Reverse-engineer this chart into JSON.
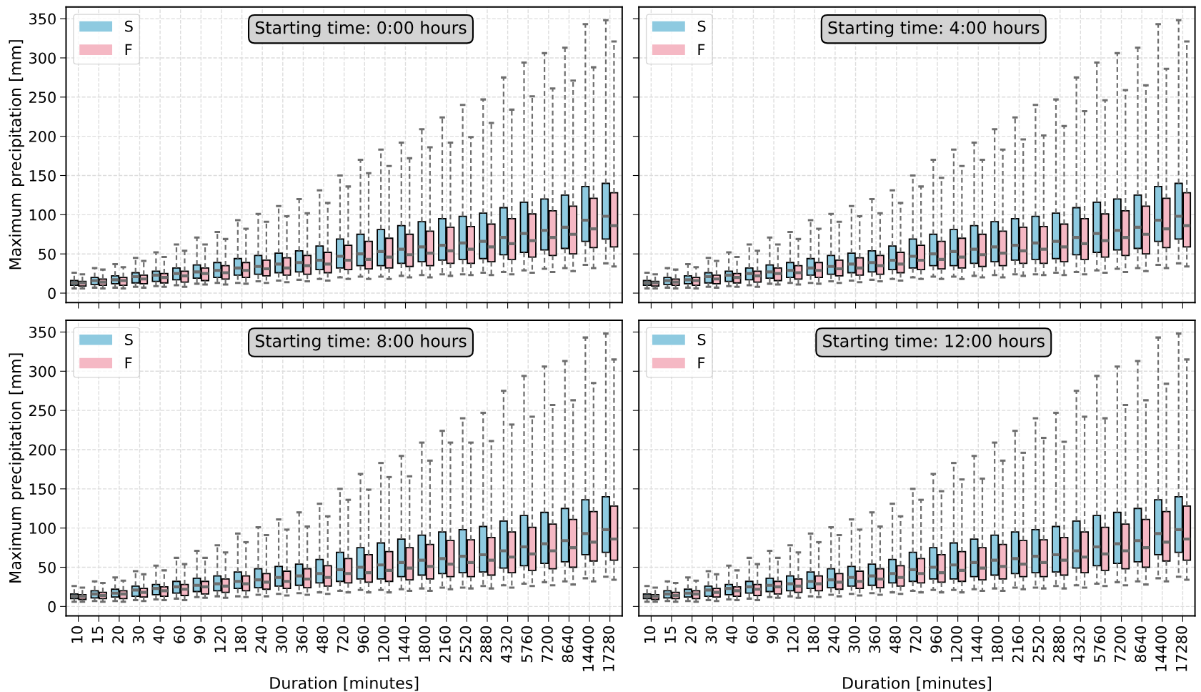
{
  "chart_data": [
    {
      "type": "box",
      "title": "Starting time: 0:00 hours",
      "ylabel": "Maximum precipitation [mm]",
      "tick_labels": "y",
      "legend": "top left",
      "grid": true,
      "categories": [
        "10",
        "15",
        "20",
        "30",
        "40",
        "60",
        "90",
        "120",
        "180",
        "240",
        "300",
        "360",
        "480",
        "720",
        "960",
        "1200",
        "1440",
        "1800",
        "2160",
        "2520",
        "2880",
        "4320",
        "5760",
        "7200",
        "8640",
        "14400",
        "17280"
      ],
      "ylim": [
        -12,
        365
      ],
      "yticks": [
        0,
        50,
        100,
        150,
        200,
        250,
        300,
        350
      ],
      "series": [
        {
          "name": "S",
          "color": "#8ecae0",
          "boxes": [
            {
              "low": 6,
              "q1": 10,
              "median": 13,
              "q3": 16,
              "high": 26
            },
            {
              "low": 7,
              "q1": 11,
              "median": 16,
              "q3": 20,
              "high": 32
            },
            {
              "low": 7,
              "q1": 12,
              "median": 17,
              "q3": 22,
              "high": 37
            },
            {
              "low": 8,
              "q1": 13,
              "median": 21,
              "q3": 26,
              "high": 45
            },
            {
              "low": 9,
              "q1": 15,
              "median": 23,
              "q3": 28,
              "high": 52
            },
            {
              "low": 10,
              "q1": 17,
              "median": 25,
              "q3": 32,
              "high": 62
            },
            {
              "low": 12,
              "q1": 19,
              "median": 27,
              "q3": 36,
              "high": 71
            },
            {
              "low": 13,
              "q1": 20,
              "median": 29,
              "q3": 39,
              "high": 78
            },
            {
              "low": 13,
              "q1": 23,
              "median": 32,
              "q3": 44,
              "high": 93
            },
            {
              "low": 15,
              "q1": 24,
              "median": 34,
              "q3": 48,
              "high": 101
            },
            {
              "low": 16,
              "q1": 26,
              "median": 37,
              "q3": 51,
              "high": 111
            },
            {
              "low": 17,
              "q1": 27,
              "median": 39,
              "q3": 54,
              "high": 120
            },
            {
              "low": 18,
              "q1": 30,
              "median": 42,
              "q3": 60,
              "high": 131
            },
            {
              "low": 20,
              "q1": 32,
              "median": 47,
              "q3": 69,
              "high": 150
            },
            {
              "low": 21,
              "q1": 35,
              "median": 50,
              "q3": 75,
              "high": 170
            },
            {
              "low": 21,
              "q1": 35,
              "median": 53,
              "q3": 81,
              "high": 183
            },
            {
              "low": 22,
              "q1": 38,
              "median": 56,
              "q3": 86,
              "high": 192
            },
            {
              "low": 23,
              "q1": 40,
              "median": 59,
              "q3": 91,
              "high": 209
            },
            {
              "low": 24,
              "q1": 42,
              "median": 61,
              "q3": 95,
              "high": 224
            },
            {
              "low": 24,
              "q1": 43,
              "median": 64,
              "q3": 98,
              "high": 240
            },
            {
              "low": 26,
              "q1": 44,
              "median": 66,
              "q3": 102,
              "high": 247
            },
            {
              "low": 27,
              "q1": 49,
              "median": 71,
              "q3": 109,
              "high": 275
            },
            {
              "low": 29,
              "q1": 52,
              "median": 76,
              "q3": 116,
              "high": 294
            },
            {
              "low": 31,
              "q1": 55,
              "median": 80,
              "q3": 120,
              "high": 306
            },
            {
              "low": 32,
              "q1": 57,
              "median": 84,
              "q3": 125,
              "high": 313
            },
            {
              "low": 36,
              "q1": 66,
              "median": 93,
              "q3": 136,
              "high": 343
            },
            {
              "low": 38,
              "q1": 69,
              "median": 98,
              "q3": 140,
              "high": 348
            }
          ]
        },
        {
          "name": "F",
          "color": "#f5b8c4",
          "boxes": [
            {
              "low": 6,
              "q1": 9,
              "median": 13,
              "q3": 15,
              "high": 24
            },
            {
              "low": 6,
              "q1": 10,
              "median": 14,
              "q3": 18,
              "high": 30
            },
            {
              "low": 6,
              "q1": 10,
              "median": 16,
              "q3": 20,
              "high": 33
            },
            {
              "low": 7,
              "q1": 12,
              "median": 18,
              "q3": 23,
              "high": 41
            },
            {
              "low": 8,
              "q1": 13,
              "median": 20,
              "q3": 25,
              "high": 46
            },
            {
              "low": 8,
              "q1": 14,
              "median": 22,
              "q3": 28,
              "high": 54
            },
            {
              "low": 11,
              "q1": 16,
              "median": 25,
              "q3": 32,
              "high": 62
            },
            {
              "low": 11,
              "q1": 18,
              "median": 26,
              "q3": 35,
              "high": 69
            },
            {
              "low": 12,
              "q1": 20,
              "median": 29,
              "q3": 39,
              "high": 82
            },
            {
              "low": 13,
              "q1": 22,
              "median": 31,
              "q3": 42,
              "high": 91
            },
            {
              "low": 14,
              "q1": 23,
              "median": 32,
              "q3": 45,
              "high": 98
            },
            {
              "low": 15,
              "q1": 24,
              "median": 35,
              "q3": 48,
              "high": 102
            },
            {
              "low": 16,
              "q1": 26,
              "median": 37,
              "q3": 52,
              "high": 115
            },
            {
              "low": 18,
              "q1": 30,
              "median": 42,
              "q3": 61,
              "high": 136
            },
            {
              "low": 18,
              "q1": 31,
              "median": 43,
              "q3": 66,
              "high": 153
            },
            {
              "low": 18,
              "q1": 32,
              "median": 46,
              "q3": 70,
              "high": 162
            },
            {
              "low": 20,
              "q1": 34,
              "median": 49,
              "q3": 75,
              "high": 172
            },
            {
              "low": 20,
              "q1": 35,
              "median": 51,
              "q3": 79,
              "high": 186
            },
            {
              "low": 22,
              "q1": 38,
              "median": 54,
              "q3": 84,
              "high": 192
            },
            {
              "low": 23,
              "q1": 38,
              "median": 56,
              "q3": 85,
              "high": 199
            },
            {
              "low": 23,
              "q1": 40,
              "median": 59,
              "q3": 88,
              "high": 217
            },
            {
              "low": 24,
              "q1": 43,
              "median": 63,
              "q3": 95,
              "high": 234
            },
            {
              "low": 26,
              "q1": 46,
              "median": 67,
              "q3": 101,
              "high": 251
            },
            {
              "low": 27,
              "q1": 48,
              "median": 71,
              "q3": 105,
              "high": 261
            },
            {
              "low": 28,
              "q1": 50,
              "median": 75,
              "q3": 111,
              "high": 271
            },
            {
              "low": 32,
              "q1": 58,
              "median": 82,
              "q3": 121,
              "high": 288
            },
            {
              "low": 34,
              "q1": 59,
              "median": 86,
              "q3": 128,
              "high": 321
            }
          ]
        }
      ]
    },
    {
      "type": "box",
      "title": "Starting time: 4:00 hours",
      "tick_labels": false,
      "legend": "top left",
      "grid": true,
      "categories": [
        "10",
        "15",
        "20",
        "30",
        "40",
        "60",
        "90",
        "120",
        "180",
        "240",
        "300",
        "360",
        "480",
        "720",
        "960",
        "1200",
        "1440",
        "1800",
        "2160",
        "2520",
        "2880",
        "4320",
        "5760",
        "7200",
        "8640",
        "14400",
        "17280"
      ],
      "ylim": [
        -12,
        365
      ],
      "yticks": [
        0,
        50,
        100,
        150,
        200,
        250,
        300,
        350
      ],
      "series": [
        {
          "name": "S",
          "color": "#8ecae0",
          "boxes": [
            {
              "low": 6,
              "q1": 10,
              "median": 13,
              "q3": 16,
              "high": 26
            },
            {
              "low": 7,
              "q1": 11,
              "median": 16,
              "q3": 20,
              "high": 32
            },
            {
              "low": 7,
              "q1": 12,
              "median": 17,
              "q3": 22,
              "high": 37
            },
            {
              "low": 8,
              "q1": 13,
              "median": 21,
              "q3": 26,
              "high": 45
            },
            {
              "low": 9,
              "q1": 15,
              "median": 23,
              "q3": 28,
              "high": 52
            },
            {
              "low": 10,
              "q1": 17,
              "median": 25,
              "q3": 32,
              "high": 62
            },
            {
              "low": 12,
              "q1": 19,
              "median": 27,
              "q3": 36,
              "high": 71
            },
            {
              "low": 13,
              "q1": 20,
              "median": 29,
              "q3": 39,
              "high": 78
            },
            {
              "low": 13,
              "q1": 23,
              "median": 32,
              "q3": 44,
              "high": 93
            },
            {
              "low": 15,
              "q1": 24,
              "median": 34,
              "q3": 48,
              "high": 101
            },
            {
              "low": 16,
              "q1": 26,
              "median": 37,
              "q3": 51,
              "high": 111
            },
            {
              "low": 17,
              "q1": 27,
              "median": 39,
              "q3": 54,
              "high": 120
            },
            {
              "low": 18,
              "q1": 30,
              "median": 42,
              "q3": 60,
              "high": 131
            },
            {
              "low": 20,
              "q1": 32,
              "median": 47,
              "q3": 69,
              "high": 150
            },
            {
              "low": 21,
              "q1": 35,
              "median": 50,
              "q3": 75,
              "high": 170
            },
            {
              "low": 21,
              "q1": 35,
              "median": 53,
              "q3": 81,
              "high": 183
            },
            {
              "low": 22,
              "q1": 38,
              "median": 56,
              "q3": 86,
              "high": 192
            },
            {
              "low": 23,
              "q1": 40,
              "median": 59,
              "q3": 91,
              "high": 209
            },
            {
              "low": 24,
              "q1": 42,
              "median": 61,
              "q3": 95,
              "high": 224
            },
            {
              "low": 24,
              "q1": 43,
              "median": 64,
              "q3": 98,
              "high": 240
            },
            {
              "low": 26,
              "q1": 44,
              "median": 66,
              "q3": 102,
              "high": 247
            },
            {
              "low": 27,
              "q1": 49,
              "median": 71,
              "q3": 109,
              "high": 275
            },
            {
              "low": 29,
              "q1": 52,
              "median": 76,
              "q3": 116,
              "high": 294
            },
            {
              "low": 31,
              "q1": 55,
              "median": 80,
              "q3": 120,
              "high": 306
            },
            {
              "low": 32,
              "q1": 57,
              "median": 84,
              "q3": 125,
              "high": 313
            },
            {
              "low": 36,
              "q1": 66,
              "median": 93,
              "q3": 136,
              "high": 343
            },
            {
              "low": 38,
              "q1": 69,
              "median": 98,
              "q3": 140,
              "high": 348
            }
          ]
        },
        {
          "name": "F",
          "color": "#f5b8c4",
          "boxes": [
            {
              "low": 6,
              "q1": 9,
              "median": 13,
              "q3": 15,
              "high": 24
            },
            {
              "low": 6,
              "q1": 10,
              "median": 14,
              "q3": 18,
              "high": 30
            },
            {
              "low": 6,
              "q1": 10,
              "median": 16,
              "q3": 20,
              "high": 33
            },
            {
              "low": 7,
              "q1": 12,
              "median": 18,
              "q3": 23,
              "high": 41
            },
            {
              "low": 8,
              "q1": 13,
              "median": 20,
              "q3": 25,
              "high": 46
            },
            {
              "low": 8,
              "q1": 14,
              "median": 22,
              "q3": 28,
              "high": 54
            },
            {
              "low": 11,
              "q1": 16,
              "median": 25,
              "q3": 32,
              "high": 62
            },
            {
              "low": 11,
              "q1": 18,
              "median": 26,
              "q3": 35,
              "high": 69
            },
            {
              "low": 12,
              "q1": 20,
              "median": 29,
              "q3": 39,
              "high": 82
            },
            {
              "low": 13,
              "q1": 22,
              "median": 31,
              "q3": 42,
              "high": 91
            },
            {
              "low": 14,
              "q1": 23,
              "median": 32,
              "q3": 45,
              "high": 98
            },
            {
              "low": 15,
              "q1": 24,
              "median": 35,
              "q3": 48,
              "high": 102
            },
            {
              "low": 16,
              "q1": 26,
              "median": 37,
              "q3": 52,
              "high": 115
            },
            {
              "low": 18,
              "q1": 30,
              "median": 42,
              "q3": 61,
              "high": 136
            },
            {
              "low": 18,
              "q1": 31,
              "median": 43,
              "q3": 66,
              "high": 147
            },
            {
              "low": 18,
              "q1": 32,
              "median": 46,
              "q3": 70,
              "high": 162
            },
            {
              "low": 20,
              "q1": 34,
              "median": 49,
              "q3": 75,
              "high": 170
            },
            {
              "low": 20,
              "q1": 35,
              "median": 51,
              "q3": 79,
              "high": 183
            },
            {
              "low": 22,
              "q1": 38,
              "median": 54,
              "q3": 84,
              "high": 196
            },
            {
              "low": 23,
              "q1": 38,
              "median": 56,
              "q3": 85,
              "high": 201
            },
            {
              "low": 23,
              "q1": 40,
              "median": 59,
              "q3": 88,
              "high": 213
            },
            {
              "low": 24,
              "q1": 43,
              "median": 63,
              "q3": 95,
              "high": 232
            },
            {
              "low": 26,
              "q1": 46,
              "median": 67,
              "q3": 101,
              "high": 246
            },
            {
              "low": 27,
              "q1": 48,
              "median": 71,
              "q3": 105,
              "high": 259
            },
            {
              "low": 28,
              "q1": 50,
              "median": 75,
              "q3": 111,
              "high": 265
            },
            {
              "low": 32,
              "q1": 58,
              "median": 82,
              "q3": 121,
              "high": 286
            },
            {
              "low": 34,
              "q1": 59,
              "median": 86,
              "q3": 128,
              "high": 321
            }
          ]
        }
      ]
    },
    {
      "type": "box",
      "title": "Starting time: 8:00 hours",
      "ylabel": "Maximum precipitation [mm]",
      "xlabel": "Duration [minutes]",
      "legend": "top left",
      "grid": true,
      "categories": [
        "10",
        "15",
        "20",
        "30",
        "40",
        "60",
        "90",
        "120",
        "180",
        "240",
        "300",
        "360",
        "480",
        "720",
        "960",
        "1200",
        "1440",
        "1800",
        "2160",
        "2520",
        "2880",
        "4320",
        "5760",
        "7200",
        "8640",
        "14400",
        "17280"
      ],
      "ylim": [
        -12,
        365
      ],
      "yticks": [
        0,
        50,
        100,
        150,
        200,
        250,
        300,
        350
      ],
      "series": [
        {
          "name": "S",
          "color": "#8ecae0",
          "boxes": [
            {
              "low": 6,
              "q1": 10,
              "median": 13,
              "q3": 16,
              "high": 26
            },
            {
              "low": 7,
              "q1": 11,
              "median": 16,
              "q3": 20,
              "high": 32
            },
            {
              "low": 7,
              "q1": 12,
              "median": 17,
              "q3": 22,
              "high": 37
            },
            {
              "low": 8,
              "q1": 13,
              "median": 21,
              "q3": 26,
              "high": 45
            },
            {
              "low": 9,
              "q1": 15,
              "median": 23,
              "q3": 28,
              "high": 52
            },
            {
              "low": 10,
              "q1": 17,
              "median": 25,
              "q3": 32,
              "high": 62
            },
            {
              "low": 12,
              "q1": 19,
              "median": 27,
              "q3": 36,
              "high": 71
            },
            {
              "low": 13,
              "q1": 20,
              "median": 29,
              "q3": 39,
              "high": 78
            },
            {
              "low": 13,
              "q1": 23,
              "median": 32,
              "q3": 44,
              "high": 93
            },
            {
              "low": 15,
              "q1": 24,
              "median": 34,
              "q3": 48,
              "high": 101
            },
            {
              "low": 16,
              "q1": 26,
              "median": 37,
              "q3": 51,
              "high": 111
            },
            {
              "low": 17,
              "q1": 27,
              "median": 39,
              "q3": 54,
              "high": 120
            },
            {
              "low": 18,
              "q1": 30,
              "median": 42,
              "q3": 60,
              "high": 131
            },
            {
              "low": 20,
              "q1": 32,
              "median": 47,
              "q3": 69,
              "high": 150
            },
            {
              "low": 21,
              "q1": 35,
              "median": 50,
              "q3": 75,
              "high": 169
            },
            {
              "low": 21,
              "q1": 35,
              "median": 53,
              "q3": 81,
              "high": 183
            },
            {
              "low": 22,
              "q1": 38,
              "median": 56,
              "q3": 86,
              "high": 192
            },
            {
              "low": 23,
              "q1": 40,
              "median": 59,
              "q3": 91,
              "high": 209
            },
            {
              "low": 24,
              "q1": 42,
              "median": 61,
              "q3": 95,
              "high": 224
            },
            {
              "low": 24,
              "q1": 43,
              "median": 64,
              "q3": 98,
              "high": 240
            },
            {
              "low": 26,
              "q1": 44,
              "median": 66,
              "q3": 102,
              "high": 247
            },
            {
              "low": 27,
              "q1": 49,
              "median": 71,
              "q3": 109,
              "high": 275
            },
            {
              "low": 29,
              "q1": 52,
              "median": 76,
              "q3": 116,
              "high": 294
            },
            {
              "low": 31,
              "q1": 55,
              "median": 80,
              "q3": 120,
              "high": 306
            },
            {
              "low": 32,
              "q1": 57,
              "median": 84,
              "q3": 125,
              "high": 313
            },
            {
              "low": 36,
              "q1": 66,
              "median": 93,
              "q3": 136,
              "high": 343
            },
            {
              "low": 38,
              "q1": 69,
              "median": 98,
              "q3": 140,
              "high": 348
            }
          ]
        },
        {
          "name": "F",
          "color": "#f5b8c4",
          "boxes": [
            {
              "low": 6,
              "q1": 9,
              "median": 13,
              "q3": 15,
              "high": 24
            },
            {
              "low": 6,
              "q1": 10,
              "median": 14,
              "q3": 18,
              "high": 30
            },
            {
              "low": 6,
              "q1": 10,
              "median": 16,
              "q3": 20,
              "high": 33
            },
            {
              "low": 7,
              "q1": 12,
              "median": 18,
              "q3": 23,
              "high": 41
            },
            {
              "low": 8,
              "q1": 13,
              "median": 20,
              "q3": 25,
              "high": 46
            },
            {
              "low": 8,
              "q1": 14,
              "median": 22,
              "q3": 28,
              "high": 54
            },
            {
              "low": 11,
              "q1": 16,
              "median": 25,
              "q3": 32,
              "high": 62
            },
            {
              "low": 11,
              "q1": 18,
              "median": 26,
              "q3": 35,
              "high": 69
            },
            {
              "low": 12,
              "q1": 20,
              "median": 29,
              "q3": 39,
              "high": 82
            },
            {
              "low": 13,
              "q1": 22,
              "median": 31,
              "q3": 42,
              "high": 91
            },
            {
              "low": 14,
              "q1": 23,
              "median": 32,
              "q3": 45,
              "high": 98
            },
            {
              "low": 15,
              "q1": 24,
              "median": 35,
              "q3": 48,
              "high": 102
            },
            {
              "low": 16,
              "q1": 26,
              "median": 37,
              "q3": 52,
              "high": 115
            },
            {
              "low": 18,
              "q1": 30,
              "median": 42,
              "q3": 61,
              "high": 136
            },
            {
              "low": 18,
              "q1": 31,
              "median": 43,
              "q3": 66,
              "high": 149
            },
            {
              "low": 18,
              "q1": 32,
              "median": 46,
              "q3": 70,
              "high": 165
            },
            {
              "low": 20,
              "q1": 34,
              "median": 49,
              "q3": 75,
              "high": 166
            },
            {
              "low": 20,
              "q1": 35,
              "median": 51,
              "q3": 79,
              "high": 186
            },
            {
              "low": 22,
              "q1": 38,
              "median": 54,
              "q3": 84,
              "high": 209
            },
            {
              "low": 23,
              "q1": 38,
              "median": 56,
              "q3": 85,
              "high": 209
            },
            {
              "low": 23,
              "q1": 40,
              "median": 59,
              "q3": 88,
              "high": 211
            },
            {
              "low": 24,
              "q1": 43,
              "median": 63,
              "q3": 95,
              "high": 232
            },
            {
              "low": 26,
              "q1": 46,
              "median": 67,
              "q3": 101,
              "high": 242
            },
            {
              "low": 27,
              "q1": 48,
              "median": 71,
              "q3": 105,
              "high": 257
            },
            {
              "low": 28,
              "q1": 50,
              "median": 75,
              "q3": 111,
              "high": 263
            },
            {
              "low": 32,
              "q1": 58,
              "median": 82,
              "q3": 121,
              "high": 285
            },
            {
              "low": 34,
              "q1": 59,
              "median": 86,
              "q3": 128,
              "high": 315
            }
          ]
        }
      ]
    },
    {
      "type": "box",
      "title": "Starting time: 12:00 hours",
      "xlabel": "Duration [minutes]",
      "tick_labels": "x",
      "legend": "top left",
      "grid": true,
      "categories": [
        "10",
        "15",
        "20",
        "30",
        "40",
        "60",
        "90",
        "120",
        "180",
        "240",
        "300",
        "360",
        "480",
        "720",
        "960",
        "1200",
        "1440",
        "1800",
        "2160",
        "2520",
        "2880",
        "4320",
        "5760",
        "7200",
        "8640",
        "14400",
        "17280"
      ],
      "ylim": [
        -12,
        365
      ],
      "yticks": [
        0,
        50,
        100,
        150,
        200,
        250,
        300,
        350
      ],
      "series": [
        {
          "name": "S",
          "color": "#8ecae0",
          "boxes": [
            {
              "low": 6,
              "q1": 10,
              "median": 13,
              "q3": 16,
              "high": 26
            },
            {
              "low": 7,
              "q1": 11,
              "median": 16,
              "q3": 20,
              "high": 32
            },
            {
              "low": 7,
              "q1": 12,
              "median": 17,
              "q3": 22,
              "high": 37
            },
            {
              "low": 8,
              "q1": 13,
              "median": 21,
              "q3": 26,
              "high": 45
            },
            {
              "low": 9,
              "q1": 15,
              "median": 23,
              "q3": 28,
              "high": 52
            },
            {
              "low": 10,
              "q1": 17,
              "median": 25,
              "q3": 32,
              "high": 62
            },
            {
              "low": 12,
              "q1": 19,
              "median": 27,
              "q3": 36,
              "high": 71
            },
            {
              "low": 13,
              "q1": 20,
              "median": 29,
              "q3": 39,
              "high": 78
            },
            {
              "low": 13,
              "q1": 23,
              "median": 32,
              "q3": 44,
              "high": 93
            },
            {
              "low": 15,
              "q1": 24,
              "median": 34,
              "q3": 48,
              "high": 101
            },
            {
              "low": 16,
              "q1": 26,
              "median": 37,
              "q3": 51,
              "high": 111
            },
            {
              "low": 17,
              "q1": 27,
              "median": 39,
              "q3": 54,
              "high": 120
            },
            {
              "low": 18,
              "q1": 30,
              "median": 42,
              "q3": 60,
              "high": 131
            },
            {
              "low": 20,
              "q1": 32,
              "median": 47,
              "q3": 69,
              "high": 150
            },
            {
              "low": 21,
              "q1": 35,
              "median": 50,
              "q3": 75,
              "high": 169
            },
            {
              "low": 21,
              "q1": 35,
              "median": 53,
              "q3": 81,
              "high": 183
            },
            {
              "low": 22,
              "q1": 38,
              "median": 56,
              "q3": 86,
              "high": 192
            },
            {
              "low": 23,
              "q1": 40,
              "median": 59,
              "q3": 91,
              "high": 209
            },
            {
              "low": 24,
              "q1": 42,
              "median": 61,
              "q3": 95,
              "high": 224
            },
            {
              "low": 24,
              "q1": 43,
              "median": 64,
              "q3": 98,
              "high": 240
            },
            {
              "low": 26,
              "q1": 44,
              "median": 66,
              "q3": 102,
              "high": 247
            },
            {
              "low": 27,
              "q1": 49,
              "median": 71,
              "q3": 109,
              "high": 275
            },
            {
              "low": 29,
              "q1": 52,
              "median": 76,
              "q3": 116,
              "high": 294
            },
            {
              "low": 31,
              "q1": 55,
              "median": 80,
              "q3": 120,
              "high": 306
            },
            {
              "low": 32,
              "q1": 57,
              "median": 84,
              "q3": 125,
              "high": 313
            },
            {
              "low": 36,
              "q1": 66,
              "median": 93,
              "q3": 136,
              "high": 343
            },
            {
              "low": 38,
              "q1": 69,
              "median": 98,
              "q3": 140,
              "high": 348
            }
          ]
        },
        {
          "name": "F",
          "color": "#f5b8c4",
          "boxes": [
            {
              "low": 6,
              "q1": 9,
              "median": 13,
              "q3": 15,
              "high": 24
            },
            {
              "low": 6,
              "q1": 10,
              "median": 14,
              "q3": 18,
              "high": 30
            },
            {
              "low": 6,
              "q1": 10,
              "median": 16,
              "q3": 20,
              "high": 33
            },
            {
              "low": 7,
              "q1": 12,
              "median": 18,
              "q3": 23,
              "high": 41
            },
            {
              "low": 8,
              "q1": 13,
              "median": 20,
              "q3": 25,
              "high": 46
            },
            {
              "low": 8,
              "q1": 14,
              "median": 22,
              "q3": 28,
              "high": 54
            },
            {
              "low": 11,
              "q1": 16,
              "median": 25,
              "q3": 32,
              "high": 62
            },
            {
              "low": 11,
              "q1": 18,
              "median": 26,
              "q3": 35,
              "high": 69
            },
            {
              "low": 12,
              "q1": 20,
              "median": 29,
              "q3": 39,
              "high": 82
            },
            {
              "low": 13,
              "q1": 22,
              "median": 31,
              "q3": 42,
              "high": 91
            },
            {
              "low": 14,
              "q1": 23,
              "median": 32,
              "q3": 45,
              "high": 98
            },
            {
              "low": 15,
              "q1": 24,
              "median": 35,
              "q3": 48,
              "high": 102
            },
            {
              "low": 16,
              "q1": 26,
              "median": 37,
              "q3": 52,
              "high": 115
            },
            {
              "low": 18,
              "q1": 30,
              "median": 42,
              "q3": 61,
              "high": 136
            },
            {
              "low": 18,
              "q1": 31,
              "median": 43,
              "q3": 66,
              "high": 147
            },
            {
              "low": 18,
              "q1": 32,
              "median": 46,
              "q3": 70,
              "high": 162
            },
            {
              "low": 20,
              "q1": 34,
              "median": 49,
              "q3": 75,
              "high": 163
            },
            {
              "low": 20,
              "q1": 35,
              "median": 51,
              "q3": 79,
              "high": 186
            },
            {
              "low": 22,
              "q1": 38,
              "median": 54,
              "q3": 84,
              "high": 196
            },
            {
              "low": 23,
              "q1": 38,
              "median": 56,
              "q3": 85,
              "high": 215
            },
            {
              "low": 23,
              "q1": 40,
              "median": 59,
              "q3": 88,
              "high": 210
            },
            {
              "low": 24,
              "q1": 43,
              "median": 63,
              "q3": 95,
              "high": 242
            },
            {
              "low": 26,
              "q1": 46,
              "median": 67,
              "q3": 101,
              "high": 240
            },
            {
              "low": 27,
              "q1": 48,
              "median": 71,
              "q3": 105,
              "high": 257
            },
            {
              "low": 28,
              "q1": 50,
              "median": 75,
              "q3": 111,
              "high": 263
            },
            {
              "low": 32,
              "q1": 58,
              "median": 82,
              "q3": 121,
              "high": 284
            },
            {
              "low": 34,
              "q1": 59,
              "median": 86,
              "q3": 128,
              "high": 315
            }
          ]
        }
      ]
    }
  ]
}
